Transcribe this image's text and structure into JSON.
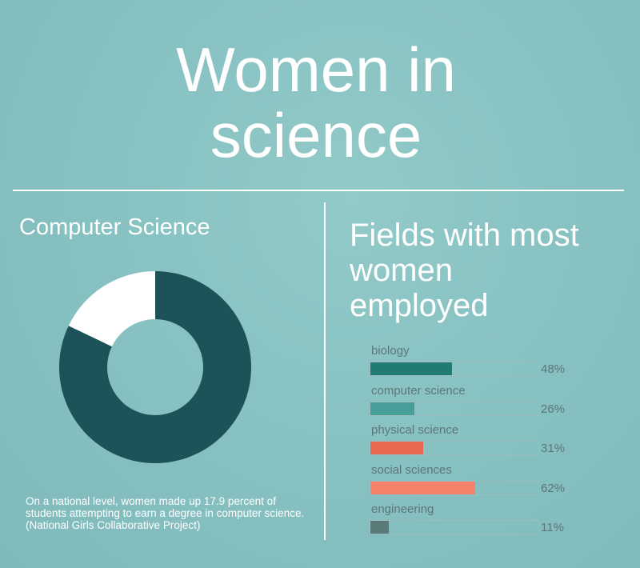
{
  "title": {
    "line1": "Women in",
    "line2": "science"
  },
  "left": {
    "heading": "Computer Science",
    "note": "On a national level, women made up 17.9 percent of students attempting to earn a degree in computer science. (National Girls Collaborative Project)"
  },
  "right": {
    "heading_line1": "Fields with most",
    "heading_line2": "women",
    "heading_line3": "employed"
  },
  "chart_data": [
    {
      "type": "pie",
      "title": "Computer Science",
      "donut": true,
      "slices": [
        {
          "value": 82.1,
          "color": "#1d5259"
        },
        {
          "value": 17.9,
          "color": "#ffffff"
        }
      ]
    },
    {
      "type": "bar",
      "orientation": "horizontal",
      "title": "Fields with most women employed",
      "categories": [
        "biology",
        "computer science",
        "physical science",
        "social sciences",
        "engineering"
      ],
      "values": [
        48,
        26,
        31,
        62,
        11
      ],
      "value_labels": [
        "48%",
        "26%",
        "31%",
        "62%",
        "11%"
      ],
      "colors": [
        "#217b72",
        "#479e98",
        "#e8694d",
        "#f7826b",
        "#5a7a7a"
      ],
      "xlim": [
        0,
        100
      ]
    }
  ]
}
